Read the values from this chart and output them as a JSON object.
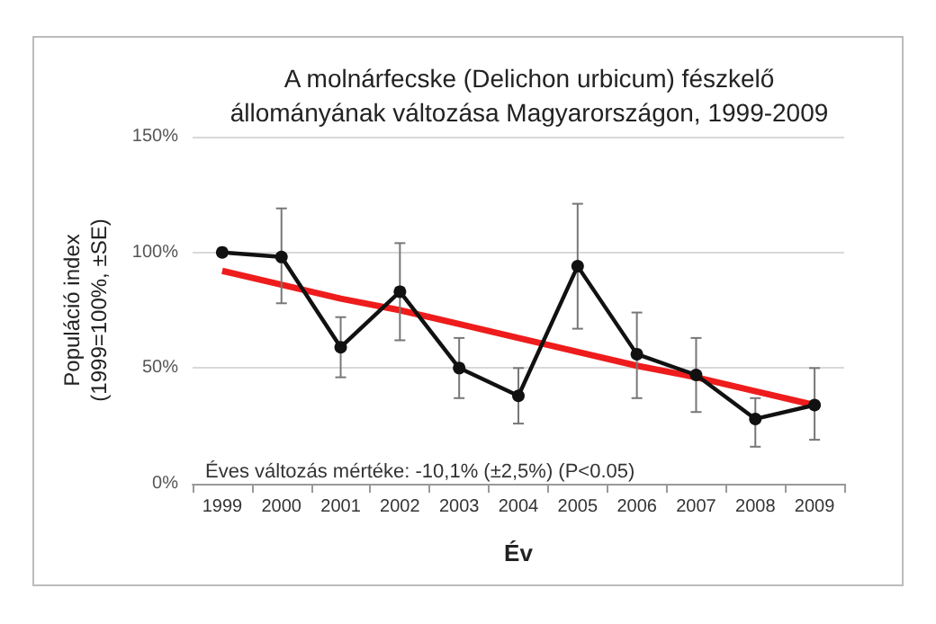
{
  "chart_data": {
    "type": "line",
    "title": "A molnárfecske (Delichon urbicum) fészkelő\nállományának változása Magyarországon, 1999-2009",
    "xlabel": "Év",
    "ylabel": "Populáció index\n(1999=100%, ±SE)",
    "categories": [
      "1999",
      "2000",
      "2001",
      "2002",
      "2003",
      "2004",
      "2005",
      "2006",
      "2007",
      "2008",
      "2009"
    ],
    "series": [
      {
        "color": "#111111",
        "marker": "circle",
        "values": [
          100,
          98,
          59,
          83,
          50,
          38,
          94,
          56,
          47,
          28,
          34
        ],
        "errors": [
          null,
          [
            78,
            119
          ],
          [
            46,
            72
          ],
          [
            62,
            104
          ],
          [
            37,
            63
          ],
          [
            26,
            50
          ],
          [
            67,
            121
          ],
          [
            37,
            74
          ],
          [
            31,
            63
          ],
          [
            16,
            37
          ],
          [
            19,
            50
          ]
        ]
      },
      {
        "type": "line",
        "color": "#ee1c1c",
        "marker": "none",
        "values": [
          92,
          86,
          80,
          75,
          69,
          63,
          57,
          51,
          46,
          40,
          34
        ]
      }
    ],
    "ylim": [
      0,
      150
    ],
    "yticks": [
      {
        "value": 0,
        "label": "0%"
      },
      {
        "value": 50,
        "label": "50%"
      },
      {
        "value": 100,
        "label": "100%"
      },
      {
        "value": 150,
        "label": "150%"
      }
    ],
    "grid": "y",
    "annotations": [
      "Éves változás mértéke: -10,1% (±2,5%) (P<0.05)"
    ]
  }
}
